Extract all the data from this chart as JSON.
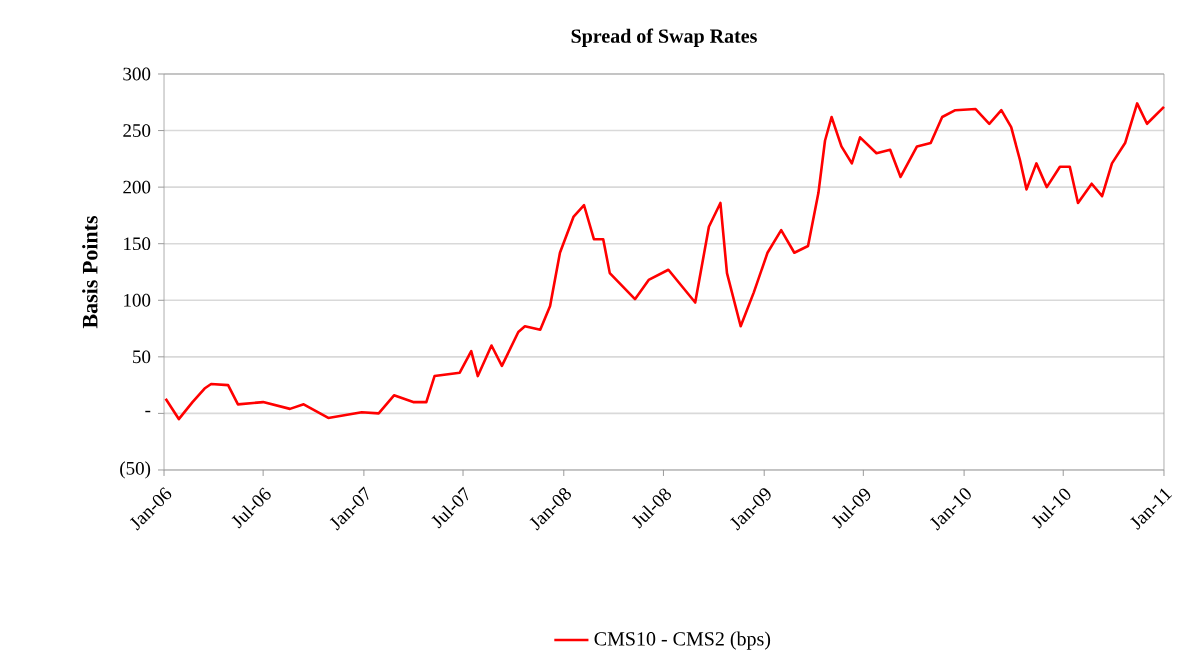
{
  "chart_data": {
    "type": "line",
    "title": "Spread of Swap Rates",
    "ylabel": "Basis Points",
    "x": [
      "2006-01-04",
      "2006-01-28",
      "2006-02-22",
      "2006-03-16",
      "2006-03-28",
      "2006-04-28",
      "2006-05-16",
      "2006-07-01",
      "2006-08-19",
      "2006-09-13",
      "2006-10-28",
      "2006-12-28",
      "2007-01-28",
      "2007-02-25",
      "2007-04-01",
      "2007-04-25",
      "2007-05-10",
      "2007-06-25",
      "2007-07-16",
      "2007-07-28",
      "2007-08-22",
      "2007-09-10",
      "2007-10-10",
      "2007-10-22",
      "2007-11-19",
      "2007-12-07",
      "2007-12-25",
      "2008-01-19",
      "2008-02-07",
      "2008-02-25",
      "2008-03-13",
      "2008-03-25",
      "2008-05-10",
      "2008-06-04",
      "2008-07-10",
      "2008-08-28",
      "2008-09-22",
      "2008-10-13",
      "2008-10-25",
      "2008-11-19",
      "2008-12-13",
      "2009-01-07",
      "2009-02-01",
      "2009-02-25",
      "2009-03-22",
      "2009-04-10",
      "2009-04-22",
      "2009-05-04",
      "2009-05-22",
      "2009-06-10",
      "2009-06-25",
      "2009-07-25",
      "2009-08-19",
      "2009-09-07",
      "2009-10-07",
      "2009-11-01",
      "2009-11-22",
      "2009-12-16",
      "2010-01-22",
      "2010-02-16",
      "2010-03-10",
      "2010-03-28",
      "2010-04-13",
      "2010-04-25",
      "2010-05-13",
      "2010-06-01",
      "2010-06-25",
      "2010-07-13",
      "2010-07-28",
      "2010-08-22",
      "2010-09-10",
      "2010-09-28",
      "2010-10-22",
      "2010-11-13",
      "2010-12-01",
      "2011-01-01"
    ],
    "series": [
      {
        "name": "CMS10 - CMS2 (bps)",
        "color": "#ff0000",
        "values": [
          13,
          -5,
          10,
          22,
          26,
          25,
          8,
          10,
          4,
          8,
          -4,
          1,
          0,
          16,
          10,
          10,
          33,
          36,
          55,
          33,
          60,
          42,
          72,
          77,
          74,
          95,
          142,
          174,
          184,
          154,
          154,
          124,
          101,
          118,
          127,
          98,
          165,
          186,
          124,
          77,
          107,
          142,
          162,
          142,
          148,
          195,
          241,
          262,
          236,
          221,
          244,
          230,
          233,
          209,
          236,
          239,
          262,
          268,
          269,
          256,
          268,
          253,
          224,
          198,
          221,
          200,
          218,
          218,
          186,
          203,
          192,
          221,
          239,
          274,
          256,
          271
        ]
      }
    ],
    "xlim": [
      "2006-01",
      "2011-01"
    ],
    "xticks": [
      {
        "value": "2006-01",
        "label": "Jan-06"
      },
      {
        "value": "2006-07",
        "label": "Jul-06"
      },
      {
        "value": "2007-01",
        "label": "Jan-07"
      },
      {
        "value": "2007-07",
        "label": "Jul-07"
      },
      {
        "value": "2008-01",
        "label": "Jan-08"
      },
      {
        "value": "2008-07",
        "label": "Jul-08"
      },
      {
        "value": "2009-01",
        "label": "Jan-09"
      },
      {
        "value": "2009-07",
        "label": "Jul-09"
      },
      {
        "value": "2010-01",
        "label": "Jan-10"
      },
      {
        "value": "2010-07",
        "label": "Jul-10"
      },
      {
        "value": "2011-01",
        "label": "Jan-11"
      }
    ],
    "ylim": [
      -50,
      300
    ],
    "yticks": [
      {
        "value": -50,
        "label": "(50)"
      },
      {
        "value": 0,
        "label": "-"
      },
      50,
      100,
      150,
      200,
      250,
      300
    ],
    "grid": "y",
    "legend": "bottom",
    "marker": "none",
    "line_style": "solid"
  }
}
